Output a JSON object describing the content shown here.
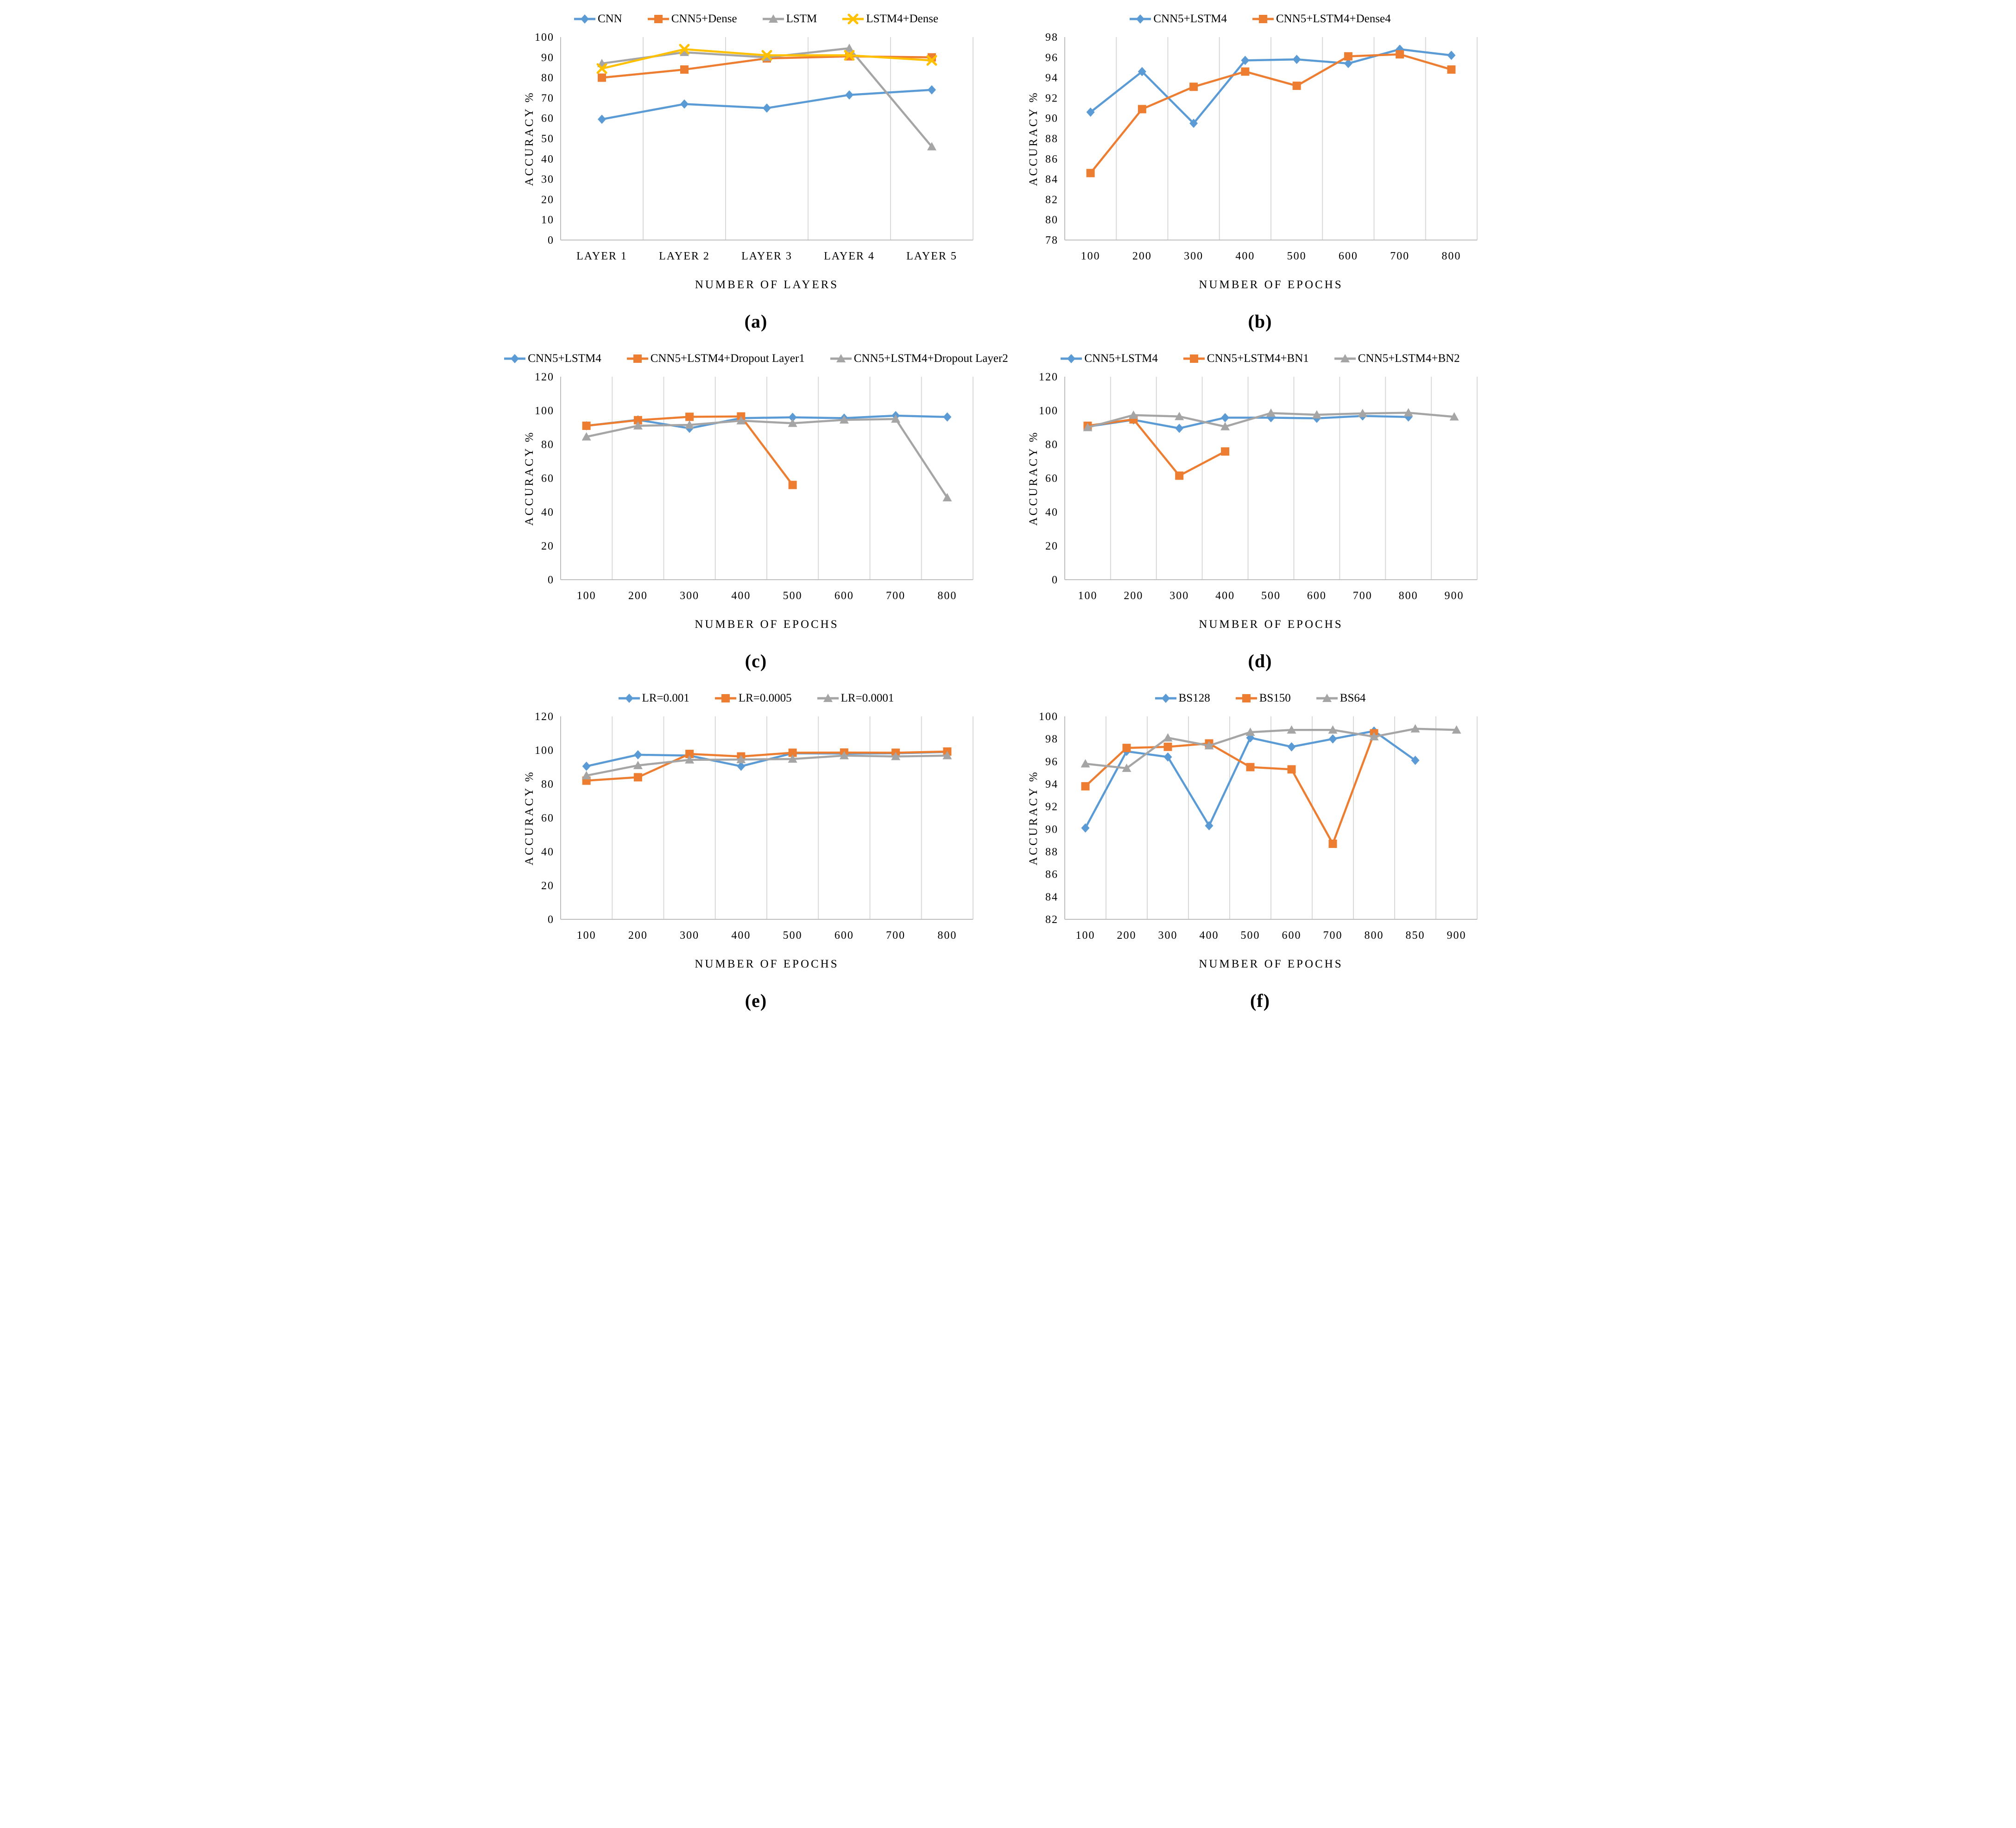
{
  "page": {
    "background": "#ffffff"
  },
  "colors": {
    "blue": "#5B9BD5",
    "orange": "#ED7D31",
    "gray": "#A5A5A5",
    "yellow": "#FFC000",
    "gridline": "#D9D9D9",
    "axis": "#BFBFBF",
    "text": "#000000"
  },
  "chart_data": [
    {
      "id": "a",
      "caption": "(a)",
      "type": "line",
      "xlabel": "NUMBER OF LAYERS",
      "ylabel": "ACCURACY %",
      "ylim": [
        0,
        100
      ],
      "y_step": 10,
      "grid": "vertical",
      "legend_position": "top",
      "categories": [
        "LAYER 1",
        "LAYER 2",
        "LAYER 3",
        "LAYER 4",
        "LAYER 5"
      ],
      "series": [
        {
          "name": "CNN",
          "color_key": "blue",
          "marker": "diamond",
          "values": [
            59.5,
            67,
            65,
            71.5,
            74
          ]
        },
        {
          "name": "CNN5+Dense",
          "color_key": "orange",
          "marker": "square",
          "values": [
            80,
            84,
            89.5,
            90.5,
            90
          ]
        },
        {
          "name": "LSTM",
          "color_key": "gray",
          "marker": "triangle",
          "values": [
            87,
            92.5,
            90,
            94.5,
            46
          ]
        },
        {
          "name": "LSTM4+Dense",
          "color_key": "yellow",
          "marker": "x",
          "values": [
            84.5,
            94,
            91,
            91,
            88.5
          ]
        }
      ]
    },
    {
      "id": "b",
      "caption": "(b)",
      "type": "line",
      "xlabel": "NUMBER OF EPOCHS",
      "ylabel": "ACCURACY %",
      "ylim": [
        78,
        98
      ],
      "y_step": 2,
      "grid": "vertical",
      "legend_position": "top",
      "categories": [
        "100",
        "200",
        "300",
        "400",
        "500",
        "600",
        "700",
        "800"
      ],
      "series": [
        {
          "name": "CNN5+LSTM4",
          "color_key": "blue",
          "marker": "diamond",
          "values": [
            90.6,
            94.6,
            89.5,
            95.7,
            95.8,
            95.4,
            96.8,
            96.2
          ]
        },
        {
          "name": "CNN5+LSTM4+Dense4",
          "color_key": "orange",
          "marker": "square",
          "values": [
            84.6,
            90.9,
            93.1,
            94.6,
            93.2,
            96.1,
            96.3,
            94.8
          ]
        }
      ]
    },
    {
      "id": "c",
      "caption": "(c)",
      "type": "line",
      "xlabel": "NUMBER OF EPOCHS",
      "ylabel": "ACCURACY %",
      "ylim": [
        0,
        120
      ],
      "y_step": 20,
      "grid": "vertical",
      "legend_position": "top",
      "categories": [
        "100",
        "200",
        "300",
        "400",
        "500",
        "600",
        "700",
        "800"
      ],
      "series": [
        {
          "name": "CNN5+LSTM4",
          "color_key": "blue",
          "marker": "diamond",
          "values": [
            91,
            94.5,
            89.5,
            95.5,
            96,
            95.5,
            97,
            96.2
          ]
        },
        {
          "name": "CNN5+LSTM4+Dropout Layer1",
          "color_key": "orange",
          "marker": "square",
          "values": [
            91,
            94.3,
            96.3,
            96.5,
            56,
            null,
            null,
            null
          ]
        },
        {
          "name": "CNN5+LSTM4+Dropout Layer2",
          "color_key": "gray",
          "marker": "triangle",
          "values": [
            84.5,
            91,
            91.5,
            94,
            92.5,
            94.5,
            95,
            48.5
          ]
        }
      ]
    },
    {
      "id": "d",
      "caption": "(d)",
      "type": "line",
      "xlabel": "NUMBER OF EPOCHS",
      "ylabel": "ACCURACY %",
      "ylim": [
        0,
        120
      ],
      "y_step": 20,
      "grid": "vertical",
      "legend_position": "top",
      "categories": [
        "100",
        "200",
        "300",
        "400",
        "500",
        "600",
        "700",
        "800",
        "900"
      ],
      "series": [
        {
          "name": "CNN5+LSTM4",
          "color_key": "blue",
          "marker": "diamond",
          "values": [
            90.5,
            94.5,
            89.5,
            95.8,
            95.8,
            95.4,
            96.8,
            96.2,
            null
          ]
        },
        {
          "name": "CNN5+LSTM4+BN1",
          "color_key": "orange",
          "marker": "square",
          "values": [
            91,
            94.8,
            61.5,
            75.8,
            null,
            null,
            null,
            null,
            null
          ]
        },
        {
          "name": "CNN5+LSTM4+BN2",
          "color_key": "gray",
          "marker": "triangle",
          "values": [
            90,
            97.3,
            96.5,
            90.5,
            98.5,
            97.5,
            98.3,
            98.7,
            96.3
          ]
        }
      ]
    },
    {
      "id": "e",
      "caption": "(e)",
      "type": "line",
      "xlabel": "NUMBER OF EPOCHS",
      "ylabel": "ACCURACY %",
      "ylim": [
        0,
        120
      ],
      "y_step": 20,
      "grid": "vertical",
      "legend_position": "top",
      "categories": [
        "100",
        "200",
        "300",
        "400",
        "500",
        "600",
        "700",
        "800"
      ],
      "series": [
        {
          "name": "LR=0.001",
          "color_key": "blue",
          "marker": "diamond",
          "values": [
            90.5,
            97.3,
            96.8,
            90.5,
            98.2,
            98,
            98.2,
            99
          ]
        },
        {
          "name": "LR=0.0005",
          "color_key": "orange",
          "marker": "square",
          "values": [
            82,
            84,
            97.8,
            96.3,
            98.5,
            98.6,
            98.5,
            99.2
          ]
        },
        {
          "name": "LR=0.0001",
          "color_key": "gray",
          "marker": "triangle",
          "values": [
            85,
            91,
            94.3,
            94.5,
            94.8,
            96.8,
            96.3,
            96.8
          ]
        }
      ]
    },
    {
      "id": "f",
      "caption": "(f)",
      "type": "line",
      "xlabel": "NUMBER OF EPOCHS",
      "ylabel": "ACCURACY %",
      "ylim": [
        82,
        100
      ],
      "y_step": 2,
      "grid": "vertical",
      "legend_position": "top",
      "categories": [
        "100",
        "200",
        "300",
        "400",
        "500",
        "600",
        "700",
        "800",
        "850",
        "900"
      ],
      "series": [
        {
          "name": "BS128",
          "color_key": "blue",
          "marker": "diamond",
          "values": [
            90.1,
            96.9,
            96.4,
            90.3,
            98.1,
            97.3,
            98,
            98.7,
            96.1,
            null
          ]
        },
        {
          "name": "BS150",
          "color_key": "orange",
          "marker": "square",
          "values": [
            93.8,
            97.2,
            97.3,
            97.6,
            95.5,
            95.3,
            88.7,
            98.5,
            null,
            null
          ]
        },
        {
          "name": "BS64",
          "color_key": "gray",
          "marker": "triangle",
          "values": [
            95.8,
            95.4,
            98.1,
            97.4,
            98.6,
            98.8,
            98.8,
            98.2,
            98.9,
            98.8
          ]
        }
      ]
    }
  ]
}
